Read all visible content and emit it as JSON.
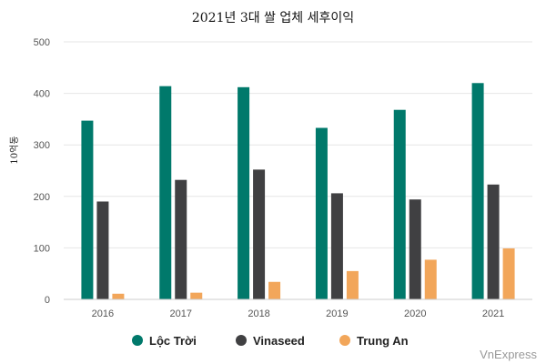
{
  "chart_data": {
    "type": "bar",
    "title": "2021년 3대 쌀 업체 세후이익",
    "ylabel": "10억동",
    "xlabel": "",
    "ylim": [
      0,
      500
    ],
    "yticks": [
      0,
      100,
      200,
      300,
      400,
      500
    ],
    "grid": true,
    "legend_position": "bottom",
    "categories": [
      "2016",
      "2017",
      "2018",
      "2019",
      "2020",
      "2021"
    ],
    "series": [
      {
        "name": "Lộc Trời",
        "color": "#00796b",
        "values": [
          347,
          414,
          412,
          333,
          368,
          420
        ]
      },
      {
        "name": "Vinaseed",
        "color": "#404042",
        "values": [
          190,
          232,
          252,
          206,
          194,
          223
        ]
      },
      {
        "name": "Trung An",
        "color": "#f2a65a",
        "values": [
          11,
          13,
          34,
          55,
          77,
          99
        ]
      }
    ]
  },
  "credit": "VnExpress"
}
